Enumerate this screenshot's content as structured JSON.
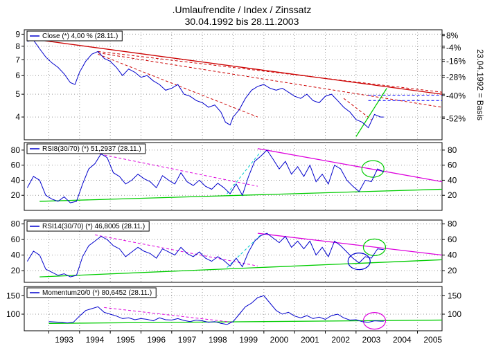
{
  "header": {
    "title": ".Umlaufrendite / Index / Zinssatz",
    "subtitle": "30.04.1992 bis 28.11.2003"
  },
  "colors": {
    "price": "#0000cc",
    "resistance": "#cc0000",
    "rsi_resistance": "#dd00dd",
    "support": "#00cc00",
    "helper": "#00cccc",
    "grid": "#999999"
  },
  "chart_data": [
    {
      "id": "close",
      "type": "line",
      "legend": "Close (*) 4,00 % (28.11.)",
      "scale": "log",
      "ylim": [
        3.2,
        9.4
      ],
      "y_ticks": [
        4,
        5,
        6,
        7,
        8,
        9
      ],
      "right_axis_label": "23.04.1992 = Basis",
      "right_ticks": [
        "8%",
        "-4%",
        "-16%",
        "-28%",
        "-40%",
        "-52%"
      ],
      "x": [
        1992.3,
        1992.5,
        1992.7,
        1992.9,
        1993.1,
        1993.3,
        1993.5,
        1993.7,
        1993.85,
        1994.0,
        1994.2,
        1994.4,
        1994.6,
        1994.8,
        1995.0,
        1995.2,
        1995.4,
        1995.6,
        1995.8,
        1996.0,
        1996.2,
        1996.4,
        1996.6,
        1996.8,
        1997.0,
        1997.2,
        1997.4,
        1997.6,
        1997.8,
        1998.0,
        1998.2,
        1998.4,
        1998.6,
        1998.75,
        1998.9,
        1999.0,
        1999.2,
        1999.4,
        1999.6,
        1999.8,
        2000.0,
        2000.2,
        2000.4,
        2000.6,
        2000.8,
        2001.0,
        2001.2,
        2001.4,
        2001.6,
        2001.8,
        2002.0,
        2002.2,
        2002.4,
        2002.6,
        2002.8,
        2003.0,
        2003.2,
        2003.4,
        2003.6,
        2003.8,
        2003.9
      ],
      "y": [
        8.4,
        8.5,
        7.8,
        7.2,
        6.8,
        6.5,
        6.1,
        5.6,
        5.5,
        6.2,
        6.9,
        7.4,
        7.6,
        7.1,
        6.9,
        6.5,
        6.0,
        6.4,
        6.2,
        5.9,
        6.0,
        5.7,
        5.5,
        5.2,
        5.3,
        5.5,
        5.0,
        4.9,
        4.7,
        4.6,
        4.4,
        4.5,
        4.2,
        3.8,
        3.7,
        4.0,
        4.3,
        4.8,
        5.2,
        5.4,
        5.5,
        5.3,
        5.2,
        5.3,
        5.1,
        4.9,
        4.8,
        5.0,
        4.7,
        4.6,
        4.9,
        5.0,
        4.7,
        4.4,
        4.2,
        3.9,
        3.8,
        3.6,
        4.1,
        4.0,
        4.0
      ]
    },
    {
      "id": "rsi8",
      "type": "line",
      "legend": "RSI8(30/70) (*) 51,2937 (28.11.)",
      "ylim": [
        0,
        90
      ],
      "y_ticks": [
        20,
        40,
        60,
        80
      ],
      "x": [
        1992.3,
        1992.5,
        1992.7,
        1992.9,
        1993.1,
        1993.3,
        1993.5,
        1993.7,
        1993.9,
        1994.1,
        1994.3,
        1994.5,
        1994.7,
        1994.9,
        1995.1,
        1995.3,
        1995.5,
        1995.7,
        1995.9,
        1996.1,
        1996.3,
        1996.5,
        1996.7,
        1996.9,
        1997.1,
        1997.3,
        1997.5,
        1997.7,
        1997.9,
        1998.1,
        1998.3,
        1998.5,
        1998.7,
        1998.9,
        1999.1,
        1999.3,
        1999.5,
        1999.7,
        1999.9,
        2000.1,
        2000.3,
        2000.5,
        2000.7,
        2000.9,
        2001.1,
        2001.3,
        2001.5,
        2001.7,
        2001.9,
        2002.1,
        2002.3,
        2002.5,
        2002.7,
        2002.9,
        2003.1,
        2003.3,
        2003.5,
        2003.7,
        2003.9
      ],
      "y": [
        30,
        45,
        40,
        20,
        15,
        12,
        18,
        10,
        12,
        35,
        55,
        62,
        75,
        70,
        50,
        45,
        35,
        40,
        48,
        42,
        38,
        30,
        46,
        40,
        35,
        50,
        38,
        33,
        40,
        32,
        28,
        36,
        30,
        22,
        35,
        20,
        45,
        65,
        72,
        80,
        68,
        55,
        65,
        48,
        58,
        45,
        60,
        38,
        48,
        35,
        60,
        55,
        40,
        32,
        25,
        40,
        38,
        55,
        51
      ]
    },
    {
      "id": "rsi14",
      "type": "line",
      "legend": "RSI14(30/70) (*) 46,8005 (28.11.)",
      "ylim": [
        5,
        85
      ],
      "y_ticks": [
        20,
        40,
        60,
        80
      ],
      "x": [
        1992.3,
        1992.5,
        1992.7,
        1992.9,
        1993.1,
        1993.3,
        1993.5,
        1993.7,
        1993.9,
        1994.1,
        1994.3,
        1994.5,
        1994.7,
        1994.9,
        1995.1,
        1995.3,
        1995.5,
        1995.7,
        1995.9,
        1996.1,
        1996.3,
        1996.5,
        1996.7,
        1996.9,
        1997.1,
        1997.3,
        1997.5,
        1997.7,
        1997.9,
        1998.1,
        1998.3,
        1998.5,
        1998.7,
        1998.9,
        1999.1,
        1999.3,
        1999.5,
        1999.7,
        1999.9,
        2000.1,
        2000.3,
        2000.5,
        2000.7,
        2000.9,
        2001.1,
        2001.3,
        2001.5,
        2001.7,
        2001.9,
        2002.1,
        2002.3,
        2002.5,
        2002.7,
        2002.9,
        2003.1,
        2003.3,
        2003.5,
        2003.7,
        2003.9
      ],
      "y": [
        32,
        45,
        40,
        22,
        18,
        14,
        16,
        12,
        14,
        38,
        52,
        58,
        64,
        60,
        52,
        48,
        38,
        44,
        50,
        45,
        42,
        36,
        48,
        44,
        40,
        50,
        42,
        38,
        44,
        36,
        32,
        38,
        33,
        26,
        36,
        25,
        44,
        58,
        65,
        68,
        62,
        56,
        64,
        50,
        58,
        48,
        58,
        40,
        50,
        38,
        58,
        52,
        44,
        36,
        30,
        38,
        36,
        48,
        47
      ]
    },
    {
      "id": "momentum",
      "type": "line",
      "legend": "Momentum20/0 (*) 80,6452 (28.11.)",
      "ylim": [
        55,
        175
      ],
      "y_ticks": [
        100,
        150
      ],
      "x": [
        1993.0,
        1993.2,
        1993.4,
        1993.6,
        1993.8,
        1994.0,
        1994.2,
        1994.4,
        1994.6,
        1994.8,
        1995.0,
        1995.2,
        1995.4,
        1995.6,
        1995.8,
        1996.0,
        1996.2,
        1996.4,
        1996.6,
        1996.8,
        1997.0,
        1997.2,
        1997.4,
        1997.6,
        1997.8,
        1998.0,
        1998.2,
        1998.4,
        1998.6,
        1998.8,
        1999.0,
        1999.2,
        1999.4,
        1999.6,
        1999.8,
        2000.0,
        2000.2,
        2000.4,
        2000.6,
        2000.8,
        2001.0,
        2001.2,
        2001.4,
        2001.6,
        2001.8,
        2002.0,
        2002.2,
        2002.4,
        2002.6,
        2002.8,
        2003.0,
        2003.2,
        2003.4,
        2003.6,
        2003.8,
        2003.9
      ],
      "y": [
        80,
        79,
        78,
        76,
        78,
        95,
        110,
        115,
        120,
        105,
        100,
        95,
        88,
        90,
        85,
        88,
        86,
        82,
        90,
        85,
        84,
        88,
        83,
        80,
        84,
        82,
        78,
        80,
        75,
        72,
        80,
        100,
        120,
        130,
        145,
        150,
        130,
        110,
        100,
        105,
        95,
        90,
        96,
        88,
        92,
        86,
        96,
        100,
        90,
        84,
        85,
        80,
        78,
        82,
        81,
        81
      ]
    }
  ],
  "x_axis": {
    "year_labels": [
      "1993",
      "1994",
      "1995",
      "1996",
      "1997",
      "1998",
      "1999",
      "2000",
      "2001",
      "2002",
      "2003",
      "2004",
      "2005"
    ]
  }
}
